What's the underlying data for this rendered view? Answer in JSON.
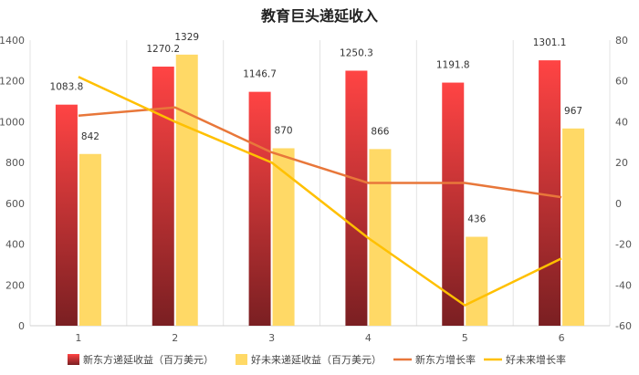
{
  "chart_data": {
    "type": "bar",
    "title": "教育巨头递延收入",
    "categories": [
      "1",
      "2",
      "3",
      "4",
      "5",
      "6"
    ],
    "series": [
      {
        "name": "新东方递延收益（百万美元）",
        "kind": "bar",
        "axis": "left",
        "values": [
          1083.8,
          1270.2,
          1146.7,
          1250.3,
          1191.8,
          1301.1
        ],
        "labels": [
          "1083.8",
          "1270.2",
          "1146.7",
          "1250.3",
          "1191.8",
          "1301.1"
        ],
        "color_top": "#ff4444",
        "color_bottom": "#7a1f22"
      },
      {
        "name": "好未来递延收益（百万美元）",
        "kind": "bar",
        "axis": "left",
        "values": [
          842,
          1329,
          870,
          866,
          436,
          967
        ],
        "labels": [
          "842",
          "1329",
          "870",
          "866",
          "436",
          "967"
        ],
        "color": "#ffd966"
      },
      {
        "name": "新东方增长率",
        "kind": "line",
        "axis": "right",
        "values": [
          43,
          47,
          25,
          10,
          10,
          3
        ],
        "color": "#e8773a"
      },
      {
        "name": "好未来增长率",
        "kind": "line",
        "axis": "right",
        "values": [
          62,
          40,
          20,
          -17,
          -50,
          -27
        ],
        "color": "#ffc000"
      }
    ],
    "y_left": {
      "min": 0,
      "max": 1400,
      "ticks": [
        "0",
        "200",
        "400",
        "600",
        "800",
        "1000",
        "1200",
        "1400"
      ]
    },
    "y_right": {
      "min": -60,
      "max": 80,
      "ticks": [
        "-60",
        "-40",
        "-20",
        "0",
        "20",
        "40",
        "60",
        "80"
      ]
    },
    "grid": "vertical-only",
    "legend": "bottom"
  }
}
